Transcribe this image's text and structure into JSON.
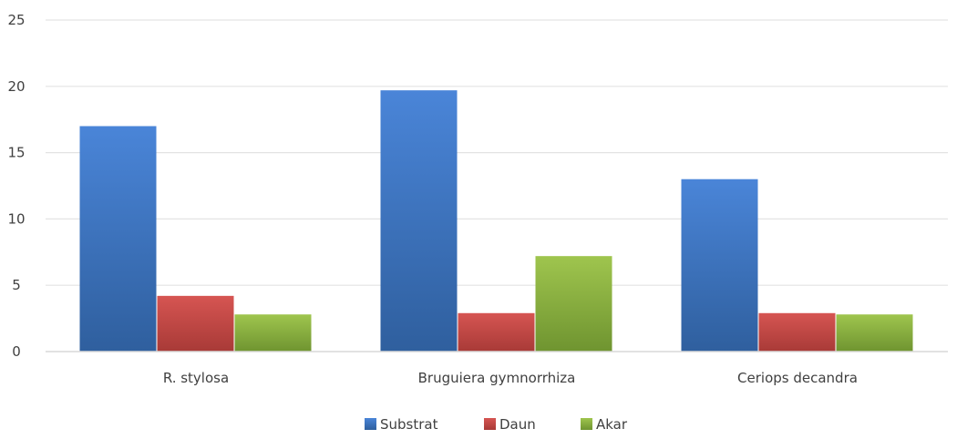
{
  "chart_data": {
    "type": "bar",
    "title": "",
    "xlabel": "",
    "ylabel": "",
    "categories": [
      "R.  stylosa",
      "Bruguiera gymnorrhiza",
      "Ceriops decandra"
    ],
    "series": [
      {
        "name": "Substrat",
        "values": [
          17,
          19.7,
          13
        ],
        "color": "#4a7fcc"
      },
      {
        "name": "Daun",
        "values": [
          4.2,
          2.9,
          2.9
        ],
        "color": "#c84b48"
      },
      {
        "name": "Akar",
        "values": [
          2.8,
          7.2,
          2.8
        ],
        "color": "#93b743"
      }
    ],
    "ylim": [
      0,
      25
    ],
    "yticks": [
      0,
      5,
      10,
      15,
      20,
      25
    ],
    "grid": true,
    "legend": "bottom"
  }
}
